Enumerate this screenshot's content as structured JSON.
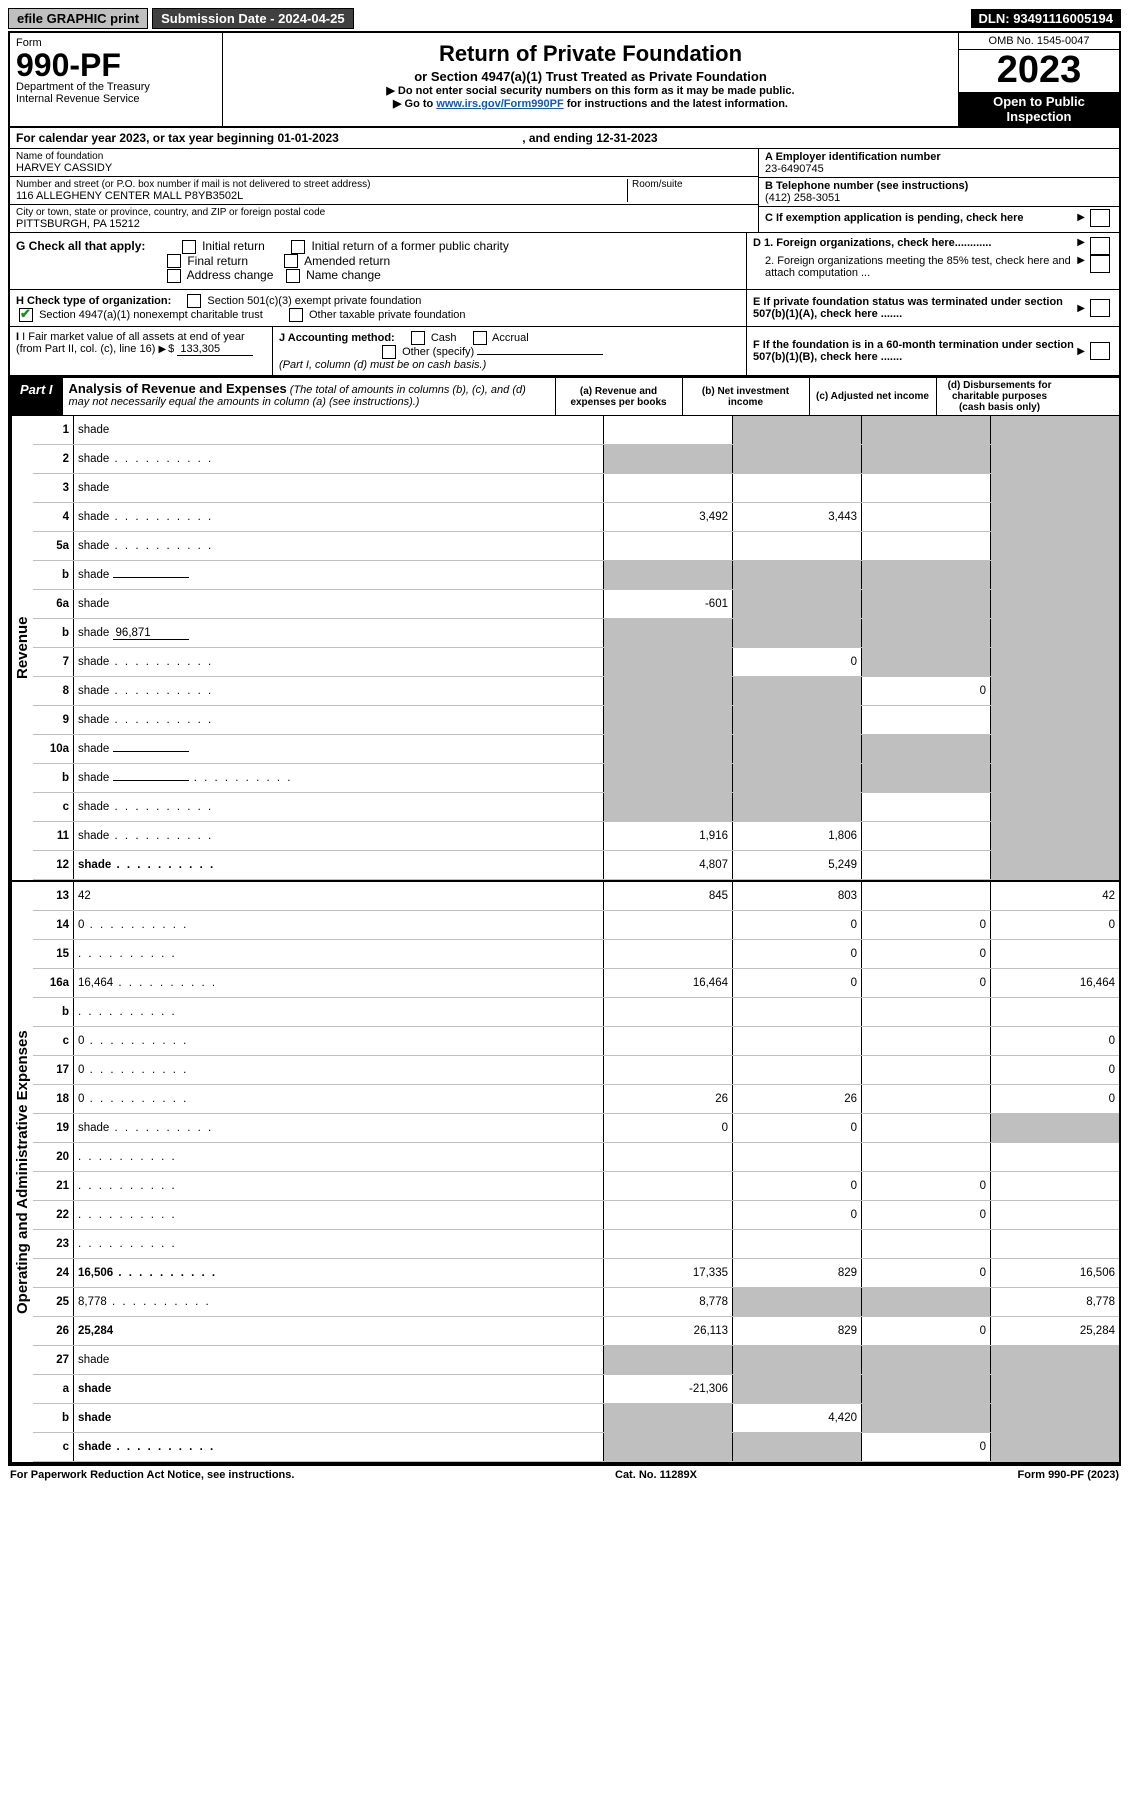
{
  "topbar": {
    "efile": "efile GRAPHIC print",
    "submission": "Submission Date - 2024-04-25",
    "dln": "DLN: 93491116005194"
  },
  "header": {
    "form_word": "Form",
    "form_no": "990-PF",
    "dept": "Department of the Treasury",
    "irs": "Internal Revenue Service",
    "title": "Return of Private Foundation",
    "subtitle": "or Section 4947(a)(1) Trust Treated as Private Foundation",
    "note1": "▶ Do not enter social security numbers on this form as it may be made public.",
    "note2_pre": "▶ Go to ",
    "note2_link": "www.irs.gov/Form990PF",
    "note2_post": " for instructions and the latest information.",
    "omb": "OMB No. 1545-0047",
    "year": "2023",
    "open": "Open to Public Inspection"
  },
  "calendar": {
    "text_pre": "For calendar year 2023, or tax year beginning ",
    "begin": "01-01-2023",
    "mid": " , and ending ",
    "end": "12-31-2023"
  },
  "foundation": {
    "name_lbl": "Name of foundation",
    "name": "HARVEY CASSIDY",
    "addr_lbl": "Number and street (or P.O. box number if mail is not delivered to street address)",
    "addr": "116 ALLEGHENY CENTER MALL P8YB3502L",
    "room_lbl": "Room/suite",
    "city_lbl": "City or town, state or province, country, and ZIP or foreign postal code",
    "city": "PITTSBURGH, PA  15212",
    "ein_lbl": "A Employer identification number",
    "ein": "23-6490745",
    "tel_lbl": "B Telephone number (see instructions)",
    "tel": "(412) 258-3051",
    "c_lbl": "C If exemption application is pending, check here",
    "d1": "D 1. Foreign organizations, check here............",
    "d2": "2. Foreign organizations meeting the 85% test, check here and attach computation ...",
    "e": "E  If private foundation status was terminated under section 507(b)(1)(A), check here .......",
    "f": "F  If the foundation is in a 60-month termination under section 507(b)(1)(B), check here .......",
    "g_lbl": "G Check all that apply:",
    "g_opts": [
      "Initial return",
      "Initial return of a former public charity",
      "Final return",
      "Amended return",
      "Address change",
      "Name change"
    ],
    "h_lbl": "H Check type of organization:",
    "h1": "Section 501(c)(3) exempt private foundation",
    "h2": "Section 4947(a)(1) nonexempt charitable trust",
    "h3": "Other taxable private foundation",
    "i_lbl": "I Fair market value of all assets at end of year (from Part II, col. (c), line 16)",
    "i_amt": "133,305",
    "j_lbl": "J Accounting method:",
    "j_opts": [
      "Cash",
      "Accrual"
    ],
    "j_other": "Other (specify)",
    "j_note": "(Part I, column (d) must be on cash basis.)"
  },
  "part1": {
    "label": "Part I",
    "title": "Analysis of Revenue and Expenses",
    "title_note": "(The total of amounts in columns (b), (c), and (d) may not necessarily equal the amounts in column (a) (see instructions).)",
    "cols": {
      "a": "(a) Revenue and expenses per books",
      "b": "(b) Net investment income",
      "c": "(c) Adjusted net income",
      "d": "(d) Disbursements for charitable purposes (cash basis only)"
    }
  },
  "side_labels": {
    "revenue": "Revenue",
    "expenses": "Operating and Administrative Expenses"
  },
  "rows": [
    {
      "n": "1",
      "d": "shade",
      "a": "",
      "b": "shade",
      "c": "shade"
    },
    {
      "n": "2",
      "d": "shade",
      "dots": true,
      "a": "shade",
      "b": "shade",
      "c": "shade"
    },
    {
      "n": "3",
      "d": "shade",
      "a": "",
      "b": "",
      "c": ""
    },
    {
      "n": "4",
      "d": "shade",
      "dots": true,
      "a": "3,492",
      "b": "3,443",
      "c": ""
    },
    {
      "n": "5a",
      "d": "shade",
      "dots": true,
      "a": "",
      "b": "",
      "c": ""
    },
    {
      "n": "b",
      "d": "shade",
      "inline": "",
      "a": "shade",
      "b": "shade",
      "c": "shade"
    },
    {
      "n": "6a",
      "d": "shade",
      "a": "-601",
      "b": "shade",
      "c": "shade"
    },
    {
      "n": "b",
      "d": "shade",
      "inline": "96,871",
      "a": "shade",
      "b": "shade",
      "c": "shade"
    },
    {
      "n": "7",
      "d": "shade",
      "dots": true,
      "a": "shade",
      "b": "0",
      "c": "shade"
    },
    {
      "n": "8",
      "d": "shade",
      "dots": true,
      "a": "shade",
      "b": "shade",
      "c": "0"
    },
    {
      "n": "9",
      "d": "shade",
      "dots": true,
      "a": "shade",
      "b": "shade",
      "c": ""
    },
    {
      "n": "10a",
      "d": "shade",
      "inline": "",
      "a": "shade",
      "b": "shade",
      "c": "shade"
    },
    {
      "n": "b",
      "d": "shade",
      "dots": true,
      "inline": "",
      "a": "shade",
      "b": "shade",
      "c": "shade"
    },
    {
      "n": "c",
      "d": "shade",
      "dots": true,
      "a": "shade",
      "b": "shade",
      "c": ""
    },
    {
      "n": "11",
      "d": "shade",
      "dots": true,
      "a": "1,916",
      "b": "1,806",
      "c": ""
    },
    {
      "n": "12",
      "d": "shade",
      "dots": true,
      "bold": true,
      "a": "4,807",
      "b": "5,249",
      "c": ""
    }
  ],
  "rows2": [
    {
      "n": "13",
      "d": "42",
      "a": "845",
      "b": "803",
      "c": ""
    },
    {
      "n": "14",
      "d": "0",
      "dots": true,
      "a": "",
      "b": "0",
      "c": "0"
    },
    {
      "n": "15",
      "d": "",
      "dots": true,
      "a": "",
      "b": "0",
      "c": "0"
    },
    {
      "n": "16a",
      "d": "16,464",
      "dots": true,
      "a": "16,464",
      "b": "0",
      "c": "0"
    },
    {
      "n": "b",
      "d": "",
      "dots": true,
      "a": "",
      "b": "",
      "c": ""
    },
    {
      "n": "c",
      "d": "0",
      "dots": true,
      "a": "",
      "b": "",
      "c": ""
    },
    {
      "n": "17",
      "d": "0",
      "dots": true,
      "a": "",
      "b": "",
      "c": ""
    },
    {
      "n": "18",
      "d": "0",
      "dots": true,
      "a": "26",
      "b": "26",
      "c": ""
    },
    {
      "n": "19",
      "d": "shade",
      "dots": true,
      "a": "0",
      "b": "0",
      "c": ""
    },
    {
      "n": "20",
      "d": "",
      "dots": true,
      "a": "",
      "b": "",
      "c": ""
    },
    {
      "n": "21",
      "d": "",
      "dots": true,
      "a": "",
      "b": "0",
      "c": "0"
    },
    {
      "n": "22",
      "d": "",
      "dots": true,
      "a": "",
      "b": "0",
      "c": "0"
    },
    {
      "n": "23",
      "d": "",
      "dots": true,
      "a": "",
      "b": "",
      "c": ""
    },
    {
      "n": "24",
      "d": "16,506",
      "dots": true,
      "bold": true,
      "a": "17,335",
      "b": "829",
      "c": "0"
    },
    {
      "n": "25",
      "d": "8,778",
      "dots": true,
      "a": "8,778",
      "b": "shade",
      "c": "shade"
    },
    {
      "n": "26",
      "d": "25,284",
      "bold": true,
      "a": "26,113",
      "b": "829",
      "c": "0"
    },
    {
      "n": "27",
      "d": "shade",
      "a": "shade",
      "b": "shade",
      "c": "shade"
    },
    {
      "n": "a",
      "d": "shade",
      "bold": true,
      "a": "-21,306",
      "b": "shade",
      "c": "shade"
    },
    {
      "n": "b",
      "d": "shade",
      "bold": true,
      "a": "shade",
      "b": "4,420",
      "c": "shade"
    },
    {
      "n": "c",
      "d": "shade",
      "dots": true,
      "bold": true,
      "a": "shade",
      "b": "shade",
      "c": "0"
    }
  ],
  "footer": {
    "left": "For Paperwork Reduction Act Notice, see instructions.",
    "mid": "Cat. No. 11289X",
    "right": "Form 990-PF (2023)"
  }
}
